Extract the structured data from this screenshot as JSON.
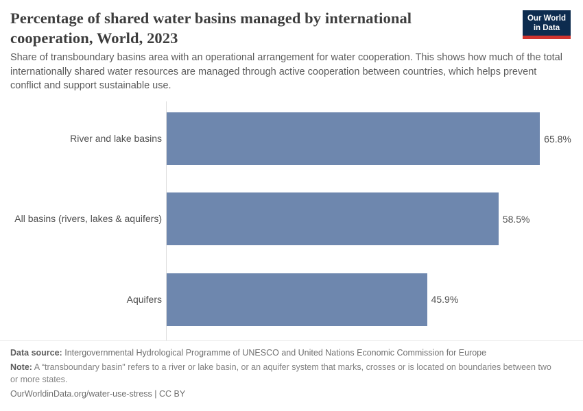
{
  "header": {
    "title": "Percentage of shared water basins managed by international cooperation, World, 2023",
    "subtitle": "Share of transboundary basins area with an operational arrangement for water cooperation. This shows how much of the total internationally shared water resources are managed through active cooperation between countries, which helps prevent conflict and support sustainable use.",
    "logo": {
      "line1": "Our World",
      "line2": "in Data"
    }
  },
  "chart_data": {
    "type": "bar",
    "orientation": "horizontal",
    "title": "Percentage of shared water basins managed by international cooperation, World, 2023",
    "categories": [
      "River and lake basins",
      "All basins (rivers, lakes & aquifers)",
      "Aquifers"
    ],
    "values": [
      65.8,
      58.5,
      45.9
    ],
    "value_labels": [
      "65.8%",
      "58.5%",
      "45.9%"
    ],
    "unit": "%",
    "xlabel": "",
    "ylabel": "",
    "xlim": [
      0,
      71
    ],
    "grid": false,
    "legend": false,
    "bar_color": "#6e87ae"
  },
  "footer": {
    "source_label": "Data source:",
    "source_text": "Intergovernmental Hydrological Programme of UNESCO and United Nations Economic Commission for Europe",
    "note_label": "Note:",
    "note_text": "A “transboundary basin\" refers to a river or lake basin, or an aquifer system that marks, crosses or is located on boundaries between two or more states.",
    "attribution": "OurWorldinData.org/water-use-stress | CC BY"
  },
  "colors": {
    "bar": "#6e87ae",
    "title": "#3d3d3d",
    "subtitle": "#5b5b5b",
    "axis_line": "#dedede",
    "logo_background": "#0d2c4f",
    "logo_stripe": "#d1342f"
  }
}
